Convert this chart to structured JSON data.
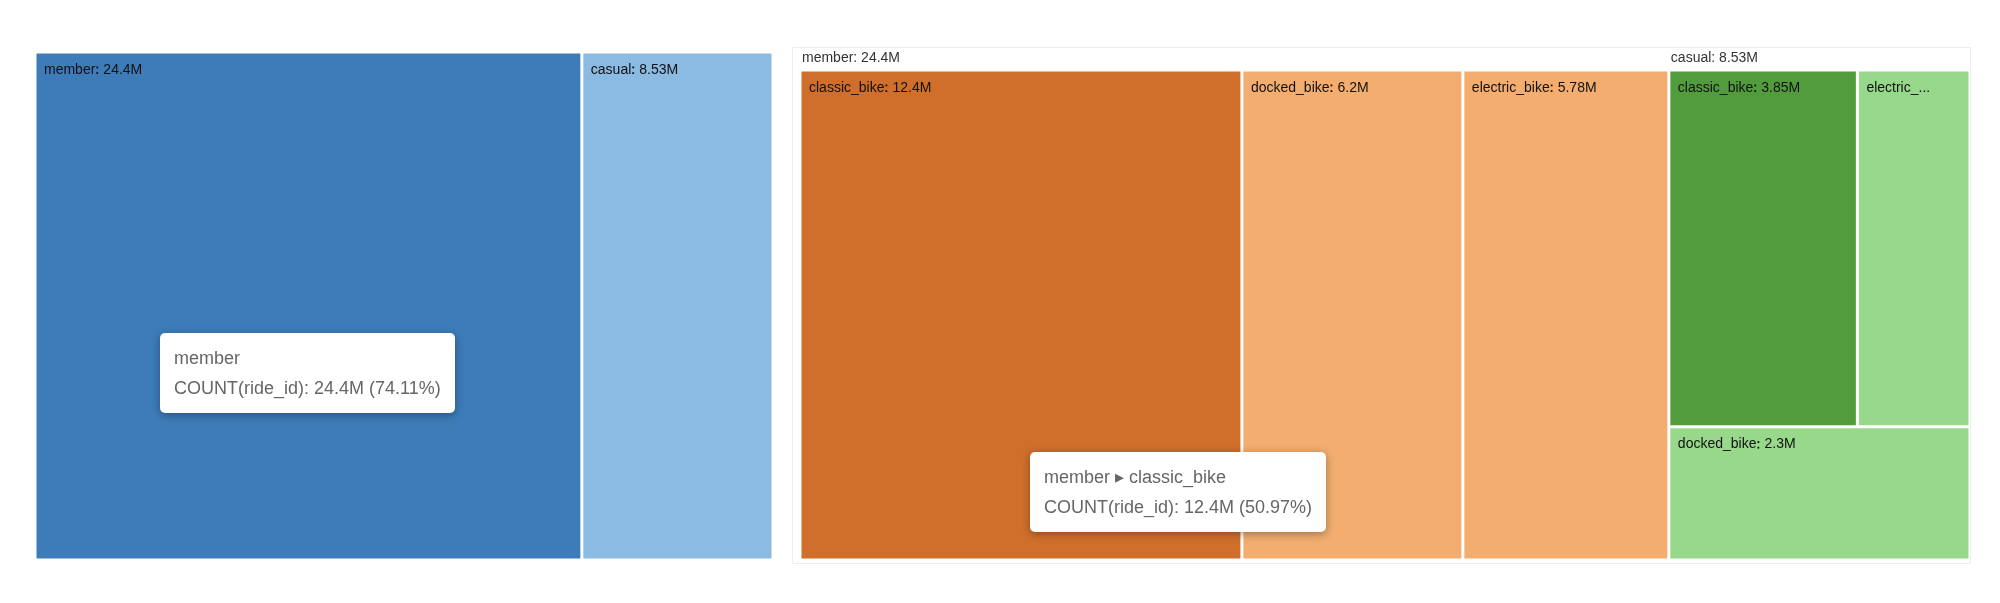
{
  "chart_data": [
    {
      "type": "other",
      "categories": [
        "member",
        "casual"
      ],
      "values": [
        24.4,
        8.53
      ],
      "value_labels": [
        "24.4M",
        "8.53M"
      ],
      "colors": [
        "#3d7cb9",
        "#8bbae3"
      ],
      "annotations": [
        "member\nCOUNT(ride_id): 24.4M (74.11%)"
      ]
    },
    {
      "type": "other",
      "categories": [
        "classic_bike",
        "docked_bike",
        "electric_bike",
        "classic_bike",
        "electric_...",
        "docked_bike"
      ],
      "series": [
        {
          "name": "member: 24.4M",
          "values": [
            12.4,
            6.2,
            5.78,
            null,
            null,
            null
          ],
          "value_labels": [
            "12.4M",
            "6.2M",
            "5.78M",
            null,
            null,
            null
          ],
          "colors": [
            "#d06f2c",
            "#f2ad6f",
            "#f2ad6f",
            null,
            null,
            null
          ]
        },
        {
          "name": "casual: 8.53M",
          "values": [
            null,
            null,
            null,
            3.85,
            null,
            2.3
          ],
          "value_labels": [
            null,
            null,
            null,
            "3.85M",
            null,
            "2.3M"
          ],
          "colors": [
            null,
            null,
            null,
            "#539c3e",
            "#97d88a",
            "#97d88a"
          ]
        }
      ],
      "annotations": [
        "member ▸ classic_bike\nCOUNT(ride_id): 12.4M (50.97%)"
      ]
    }
  ]
}
